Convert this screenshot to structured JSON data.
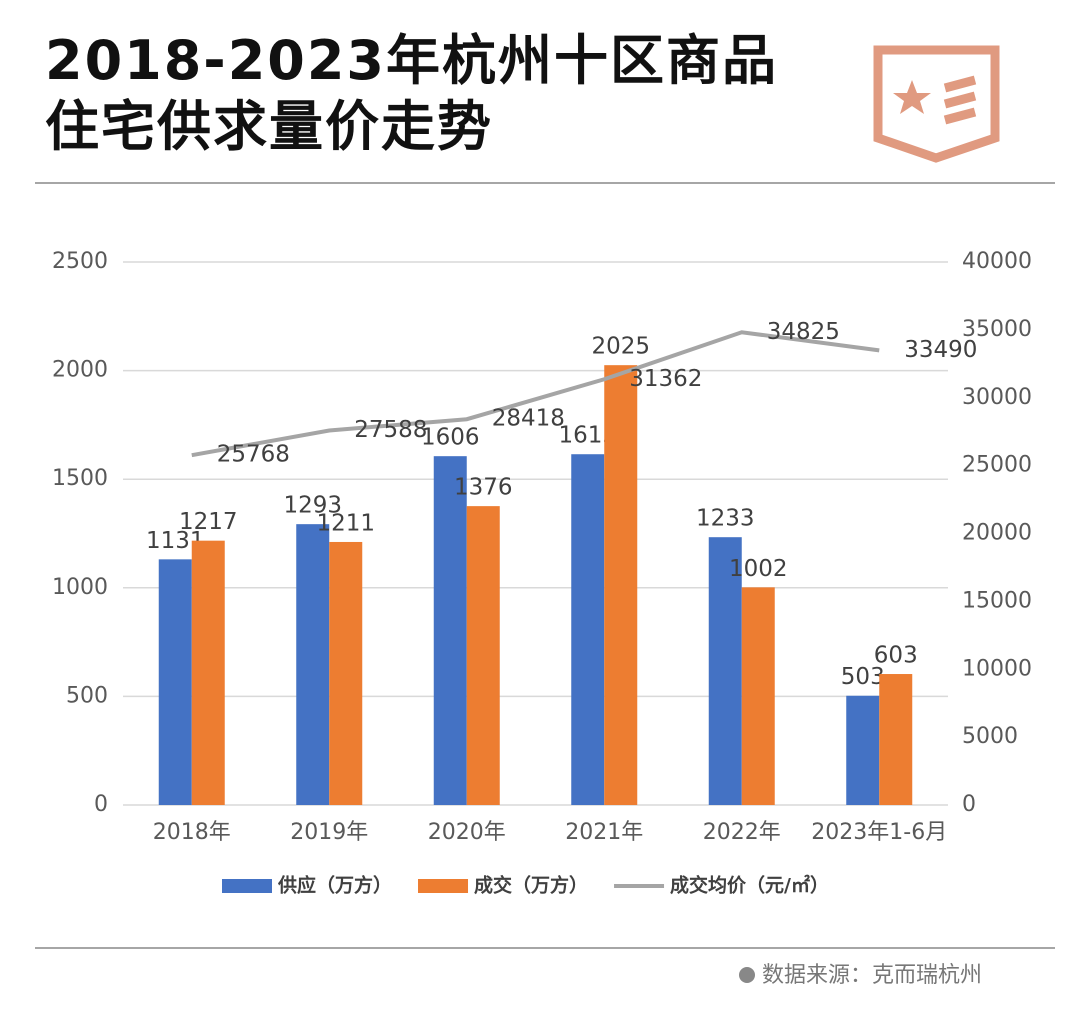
{
  "chart_data": {
    "type": "bar",
    "title": "2018-2023年杭州十区商品住宅供求量价走势",
    "source": "数据来源：克而瑞杭州",
    "categories": [
      "2018年",
      "2019年",
      "2020年",
      "2021年",
      "2022年",
      "2023年1-6月"
    ],
    "series": [
      {
        "name": "供应（万方）",
        "color": "#4472c4",
        "type": "bar",
        "values": [
          1131,
          1293,
          1606,
          1615,
          1233,
          503
        ]
      },
      {
        "name": "成交（万方）",
        "color": "#ed7d31",
        "type": "bar",
        "values": [
          1217,
          1211,
          1376,
          2025,
          1002,
          603
        ]
      },
      {
        "name": "成交均价（元/㎡）",
        "color": "#a5a5a5",
        "type": "line",
        "axis": "y2",
        "values": [
          25768,
          27588,
          28418,
          31362,
          34825,
          33490
        ]
      }
    ],
    "ylim": [
      0,
      2500
    ],
    "yticks": [
      0,
      500,
      1000,
      1500,
      2000,
      2500
    ],
    "y2lim": [
      0,
      40000
    ],
    "y2ticks": [
      0,
      5000,
      10000,
      15000,
      20000,
      25000,
      30000,
      35000,
      40000
    ],
    "grid": true,
    "legend": "bottom"
  }
}
